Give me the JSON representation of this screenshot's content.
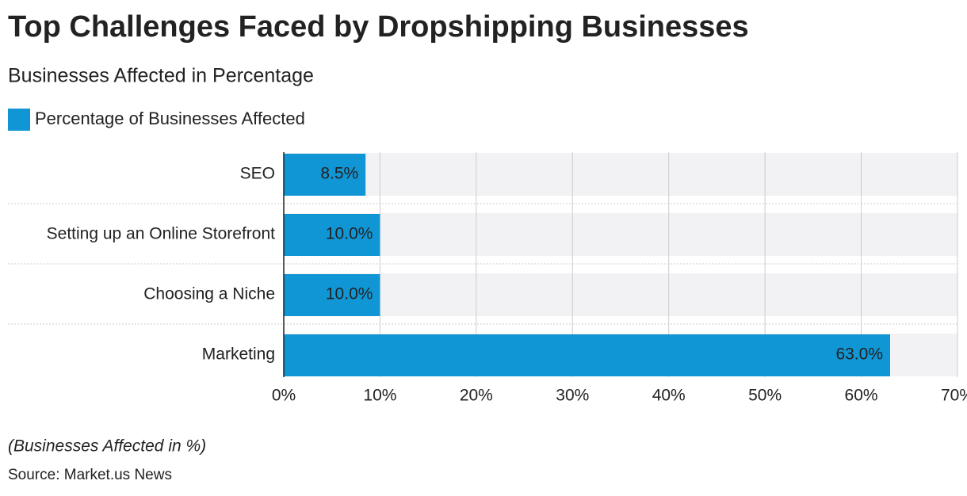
{
  "chart_data": {
    "type": "bar",
    "orientation": "horizontal",
    "title": "Top Challenges Faced by Dropshipping Businesses",
    "subtitle": "Businesses Affected in Percentage",
    "categories": [
      "SEO",
      "Setting up an Online Storefront",
      "Choosing a Niche",
      "Marketing"
    ],
    "series": [
      {
        "name": "Percentage of Businesses Affected",
        "color": "#1196d5",
        "values": [
          8.5,
          10.0,
          10.0,
          63.0
        ],
        "value_labels": [
          "8.5%",
          "10.0%",
          "10.0%",
          "63.0%"
        ]
      }
    ],
    "xlim": [
      0,
      70
    ],
    "xticks": [
      {
        "value": 0,
        "label": "0%"
      },
      {
        "value": 10,
        "label": "10%"
      },
      {
        "value": 20,
        "label": "20%"
      },
      {
        "value": 30,
        "label": "30%"
      },
      {
        "value": 40,
        "label": "40%"
      },
      {
        "value": 50,
        "label": "50%"
      },
      {
        "value": 60,
        "label": "60%"
      },
      {
        "value": 70,
        "label": "70%"
      }
    ],
    "grid": true,
    "legend": "top-left",
    "note": "(Businesses Affected in %)",
    "source": "Source: Market.us News"
  }
}
